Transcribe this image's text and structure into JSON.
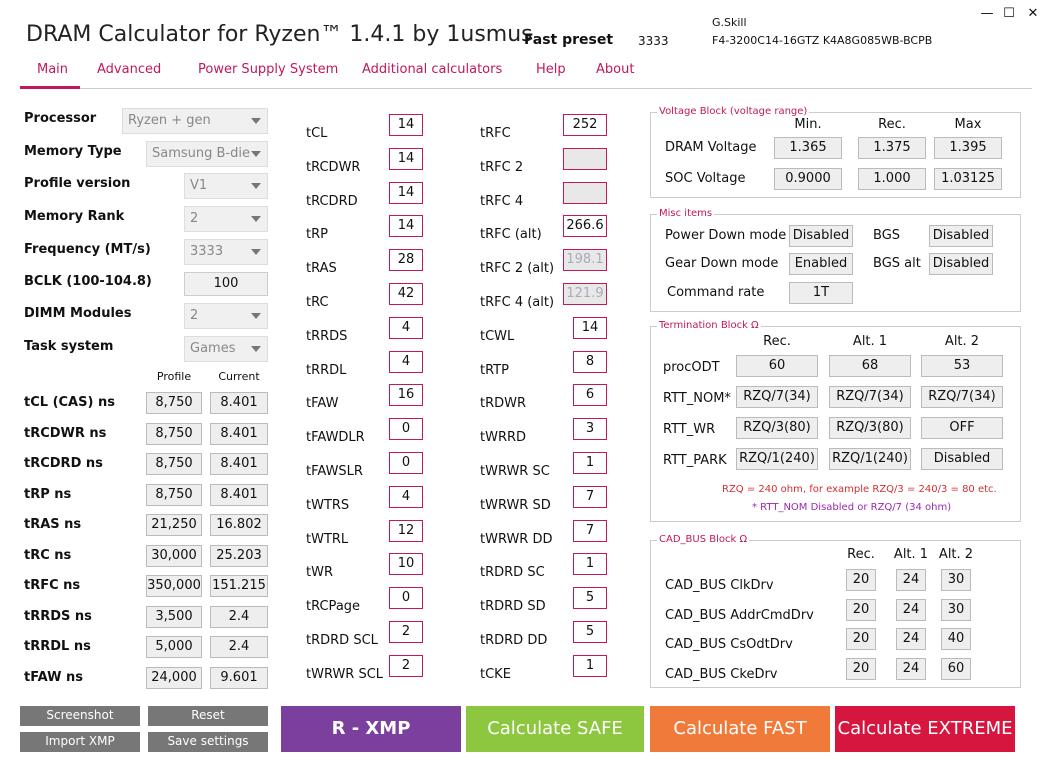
{
  "app": {
    "title": "DRAM Calculator for Ryzen™ 1.4.1 by 1usmus",
    "preset_label": "Fast preset",
    "preset_value": "3333",
    "memory_brand": "G.Skill",
    "memory_part": "F4-3200C14-16GTZ   K4A8G085WB-BCPB",
    "window_buttons": {
      "minimize": "—",
      "maximize": "☐",
      "close": "✕"
    }
  },
  "tabs": [
    "Main",
    "Advanced",
    "Power Supply System",
    "Additional calculators",
    "Help",
    "About"
  ],
  "settings": [
    {
      "label": "Processor",
      "value": "Ryzen + gen",
      "type": "select"
    },
    {
      "label": "Memory Type",
      "value": "Samsung B-die",
      "type": "select"
    },
    {
      "label": "Profile version",
      "value": "V1",
      "type": "select"
    },
    {
      "label": "Memory Rank",
      "value": "2",
      "type": "select"
    },
    {
      "label": "Frequency (MT/s)",
      "value": "3333",
      "type": "select"
    },
    {
      "label": "BCLK (100-104.8)",
      "value": "100",
      "type": "input"
    },
    {
      "label": "DIMM Modules",
      "value": "2",
      "type": "select"
    },
    {
      "label": "Task system",
      "value": "Games",
      "type": "select"
    }
  ],
  "ns_table": {
    "headers": [
      "Profile",
      "Current"
    ],
    "rows": [
      {
        "label": "tCL (CAS) ns",
        "profile": "8,750",
        "current": "8.401"
      },
      {
        "label": "tRCDWR ns",
        "profile": "8,750",
        "current": "8.401"
      },
      {
        "label": "tRCDRD ns",
        "profile": "8,750",
        "current": "8.401"
      },
      {
        "label": "tRP ns",
        "profile": "8,750",
        "current": "8.401"
      },
      {
        "label": "tRAS ns",
        "profile": "21,250",
        "current": "16.802"
      },
      {
        "label": "tRC ns",
        "profile": "30,000",
        "current": "25.203"
      },
      {
        "label": "tRFC ns",
        "profile": "350,000",
        "current": "151.215"
      },
      {
        "label": "tRRDS ns",
        "profile": "3,500",
        "current": "2.4"
      },
      {
        "label": "tRRDL ns",
        "profile": "5,000",
        "current": "2.4"
      },
      {
        "label": "tFAW ns",
        "profile": "24,000",
        "current": "9.601"
      }
    ]
  },
  "timings_col1": [
    {
      "label": "tCL",
      "value": "14"
    },
    {
      "label": "tRCDWR",
      "value": "14"
    },
    {
      "label": "tRCDRD",
      "value": "14"
    },
    {
      "label": "tRP",
      "value": "14"
    },
    {
      "label": "tRAS",
      "value": "28"
    },
    {
      "label": "tRC",
      "value": "42"
    },
    {
      "label": "tRRDS",
      "value": "4"
    },
    {
      "label": "tRRDL",
      "value": "4"
    },
    {
      "label": "tFAW",
      "value": "16"
    },
    {
      "label": "tFAWDLR",
      "value": "0"
    },
    {
      "label": "tFAWSLR",
      "value": "0"
    },
    {
      "label": "tWTRS",
      "value": "4"
    },
    {
      "label": "tWTRL",
      "value": "12"
    },
    {
      "label": "tWR",
      "value": "10"
    },
    {
      "label": "tRCPage",
      "value": "0"
    },
    {
      "label": "tRDRD SCL",
      "value": "2"
    },
    {
      "label": "tWRWR SCL",
      "value": "2"
    }
  ],
  "timings_col2": [
    {
      "label": "tRFC",
      "value": "252",
      "state": "normal",
      "wide": true
    },
    {
      "label": "tRFC 2",
      "value": "",
      "state": "gray",
      "wide": true
    },
    {
      "label": "tRFC 4",
      "value": "",
      "state": "gray",
      "wide": true
    },
    {
      "label": "tRFC (alt)",
      "value": "266.6",
      "state": "normal",
      "wide": true
    },
    {
      "label": "tRFC 2 (alt)",
      "value": "198.1",
      "state": "disabled",
      "wide": true
    },
    {
      "label": "tRFC 4 (alt)",
      "value": "121.9",
      "state": "disabled",
      "wide": true
    },
    {
      "label": "tCWL",
      "value": "14",
      "state": "normal"
    },
    {
      "label": "tRTP",
      "value": "8",
      "state": "normal"
    },
    {
      "label": "tRDWR",
      "value": "6",
      "state": "normal"
    },
    {
      "label": "tWRRD",
      "value": "3",
      "state": "normal"
    },
    {
      "label": "tWRWR SC",
      "value": "1",
      "state": "normal"
    },
    {
      "label": "tWRWR SD",
      "value": "7",
      "state": "normal"
    },
    {
      "label": "tWRWR DD",
      "value": "7",
      "state": "normal"
    },
    {
      "label": "tRDRD SC",
      "value": "1",
      "state": "normal"
    },
    {
      "label": "tRDRD SD",
      "value": "5",
      "state": "normal"
    },
    {
      "label": "tRDRD DD",
      "value": "5",
      "state": "normal"
    },
    {
      "label": "tCKE",
      "value": "1",
      "state": "normal"
    }
  ],
  "voltage_block": {
    "title": "Voltage Block (voltage range)",
    "headers": [
      "Min.",
      "Rec.",
      "Max"
    ],
    "rows": [
      {
        "label": "DRAM Voltage",
        "values": [
          "1.365",
          "1.375",
          "1.395"
        ]
      },
      {
        "label": "SOC Voltage",
        "values": [
          "0.9000",
          "1.000",
          "1.03125"
        ]
      }
    ]
  },
  "misc_block": {
    "title": "Misc items",
    "items": [
      {
        "label": "Power Down mode",
        "value": "Disabled"
      },
      {
        "label": "Gear Down mode",
        "value": "Enabled"
      },
      {
        "label": "Command rate",
        "value": "1T"
      },
      {
        "label": "BGS",
        "value": "Disabled"
      },
      {
        "label": "BGS alt",
        "value": "Disabled"
      }
    ]
  },
  "termination_block": {
    "title": "Termination Block Ω",
    "headers": [
      "Rec.",
      "Alt. 1",
      "Alt. 2"
    ],
    "rows": [
      {
        "label": "procODT",
        "values": [
          "60",
          "68",
          "53"
        ]
      },
      {
        "label": "RTT_NOM*",
        "values": [
          "RZQ/7(34)",
          "RZQ/7(34)",
          "RZQ/7(34)"
        ]
      },
      {
        "label": "RTT_WR",
        "values": [
          "RZQ/3(80)",
          "RZQ/3(80)",
          "OFF"
        ]
      },
      {
        "label": "RTT_PARK",
        "values": [
          "RZQ/1(240)",
          "RZQ/1(240)",
          "Disabled"
        ]
      }
    ],
    "note1": "RZQ = 240 ohm, for example RZQ/3 = 240/3 = 80 etc.",
    "note2": "* RTT_NOM Disabled or RZQ/7 (34 ohm)",
    "note1_color": "#d32f2f",
    "note2_color": "#9c27b0"
  },
  "cadbus_block": {
    "title": "CAD_BUS Block Ω",
    "headers": [
      "Rec.",
      "Alt. 1",
      "Alt. 2"
    ],
    "rows": [
      {
        "label": "CAD_BUS ClkDrv",
        "values": [
          "20",
          "24",
          "30"
        ]
      },
      {
        "label": "CAD_BUS AddrCmdDrv",
        "values": [
          "20",
          "24",
          "30"
        ]
      },
      {
        "label": "CAD_BUS CsOdtDrv",
        "values": [
          "20",
          "24",
          "40"
        ]
      },
      {
        "label": "CAD_BUS CkeDrv",
        "values": [
          "20",
          "24",
          "60"
        ]
      }
    ]
  },
  "bottom_buttons": {
    "screenshot": "Screenshot",
    "reset": "Reset",
    "import_xmp": "Import XMP",
    "save_settings": "Save settings",
    "r_xmp": "R - XMP",
    "calc_safe": "Calculate SAFE",
    "calc_fast": "Calculate FAST",
    "calc_extreme": "Calculate EXTREME"
  },
  "colors": {
    "accent": "#c2185b",
    "r_xmp": "#7b3f9e",
    "safe": "#8dc63f",
    "fast": "#f07a3a",
    "extreme": "#d7163f"
  }
}
